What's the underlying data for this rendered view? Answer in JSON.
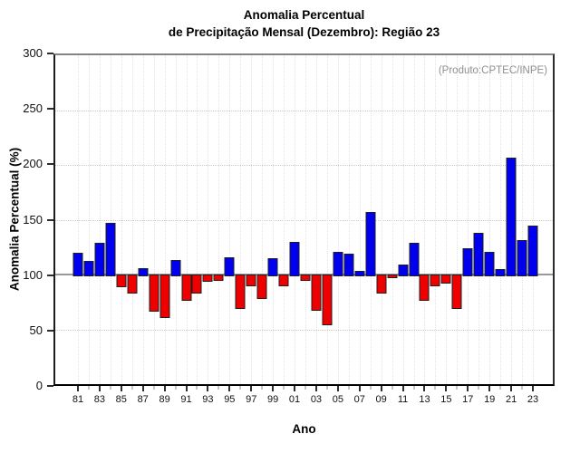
{
  "title": {
    "line1": "Anomalia Percentual",
    "line2": "de Precipitação Mensal (Dezembro): Região 23"
  },
  "annotation": "(Produto:CPTEC/INPE)",
  "chart_data": {
    "type": "bar",
    "title": "Anomalia Percentual de Precipitação Mensal (Dezembro): Região 23",
    "xlabel": "Ano",
    "ylabel": "Anomalia Percentual (%)",
    "ylim": [
      0,
      300
    ],
    "yticks": [
      0,
      50,
      100,
      150,
      200,
      250,
      300
    ],
    "grid_values": [
      50,
      150,
      200,
      250
    ],
    "baseline": 100,
    "grid": "dotted",
    "legend": null,
    "colors": {
      "above": "#0000ee",
      "below": "#ee0000",
      "bar_border": "#1f1f1f",
      "baseline_line": "#9a9a9a",
      "grid_line": "#c9c9c9"
    },
    "years": [
      1981,
      1982,
      1983,
      1984,
      1985,
      1986,
      1987,
      1988,
      1989,
      1990,
      1991,
      1992,
      1993,
      1994,
      1995,
      1996,
      1997,
      1998,
      1999,
      2000,
      2001,
      2002,
      2003,
      2004,
      2005,
      2006,
      2007,
      2008,
      2009,
      2010,
      2011,
      2012,
      2013,
      2014,
      2015,
      2016,
      2017,
      2018,
      2019,
      2020,
      2021,
      2022,
      2023
    ],
    "values": [
      120,
      112,
      129,
      147,
      90,
      84,
      106,
      68,
      62,
      113,
      78,
      84,
      95,
      96,
      116,
      70,
      91,
      79,
      115,
      91,
      130,
      96,
      69,
      55,
      121,
      119,
      103,
      157,
      84,
      98,
      109,
      129,
      78,
      91,
      93,
      70,
      124,
      138,
      121,
      105,
      207,
      131,
      145
    ],
    "xtick_labels": [
      "81",
      "83",
      "85",
      "87",
      "89",
      "91",
      "93",
      "95",
      "97",
      "99",
      "01",
      "03",
      "05",
      "07",
      "09",
      "11",
      "13",
      "15",
      "17",
      "19",
      "21",
      "23"
    ]
  }
}
